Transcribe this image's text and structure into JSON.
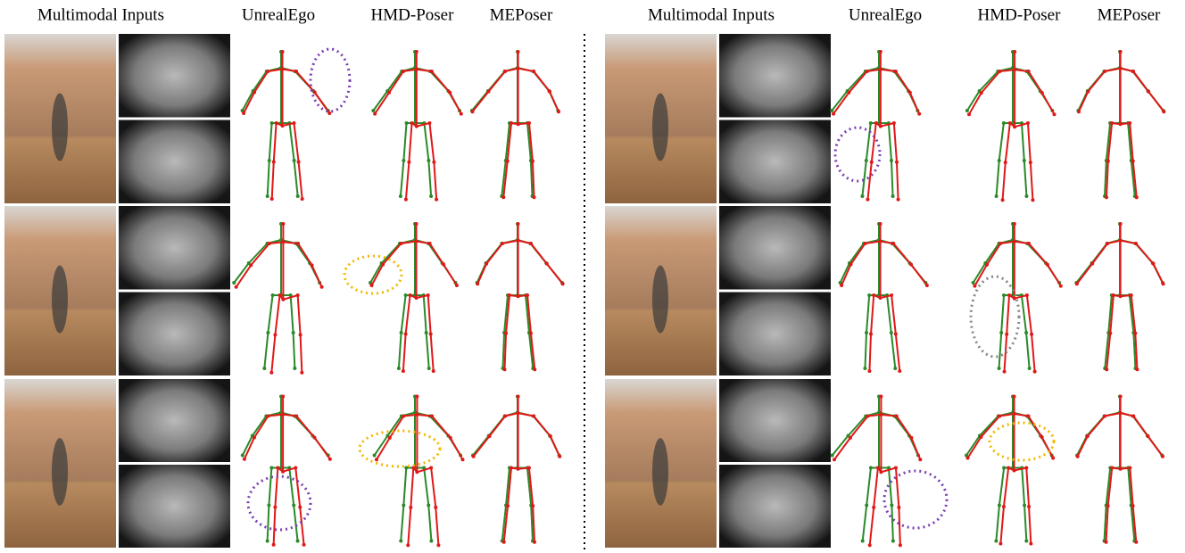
{
  "panels": [
    {
      "headers": [
        "Multimodal Inputs",
        "UnrealEgo",
        "HMD-Poser",
        "MEPoser"
      ]
    },
    {
      "headers": [
        "Multimodal Inputs",
        "UnrealEgo",
        "HMD-Poser",
        "MEPoser"
      ]
    }
  ]
}
